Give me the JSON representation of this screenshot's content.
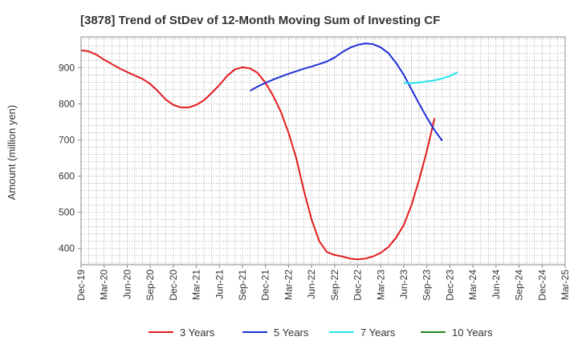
{
  "chart_data": {
    "type": "line",
    "title": "[3878]  Trend of StDev of 12-Month Moving Sum of Investing CF",
    "ylabel": "Amount (million yen)",
    "xlabel": "",
    "ylim": [
      355,
      985
    ],
    "yticks": [
      400,
      500,
      600,
      700,
      800,
      900
    ],
    "grid": true,
    "legend_position": "bottom",
    "x_tick_labels": [
      "Dec-19",
      "Mar-20",
      "Jun-20",
      "Sep-20",
      "Dec-20",
      "Mar-21",
      "Jun-21",
      "Sep-21",
      "Dec-21",
      "Mar-22",
      "Jun-22",
      "Sep-22",
      "Dec-22",
      "Mar-23",
      "Jun-23",
      "Sep-23",
      "Dec-23",
      "Mar-24",
      "Jun-24",
      "Sep-24",
      "Dec-24",
      "Mar-25"
    ],
    "series": [
      {
        "name": "3 Years",
        "color": "#e31a1c",
        "start_index": 0,
        "values": [
          948,
          945,
          936,
          922,
          910,
          898,
          888,
          878,
          869,
          855,
          835,
          812,
          797,
          790,
          790,
          797,
          810,
          830,
          852,
          877,
          895,
          901,
          898,
          885,
          858,
          822,
          778,
          720,
          650,
          560,
          480,
          420,
          390,
          382,
          378,
          372,
          370,
          372,
          378,
          388,
          404,
          430,
          465,
          520,
          590,
          670,
          760
        ]
      },
      {
        "name": "5 Years",
        "color": "#1f2fd6",
        "start_index": 22,
        "values": [
          836,
          848,
          858,
          867,
          875,
          883,
          890,
          897,
          903,
          910,
          917,
          928,
          943,
          955,
          963,
          967,
          965,
          956,
          940,
          913,
          880,
          840,
          800,
          762,
          727,
          698
        ]
      },
      {
        "name": "7 Years",
        "color": "#22e6f0",
        "start_index": 42,
        "values": [
          858,
          857,
          859,
          862,
          865,
          870,
          877,
          887
        ]
      },
      {
        "name": "10 Years",
        "color": "#1e8a1e",
        "start_index": 0,
        "values": []
      }
    ]
  }
}
